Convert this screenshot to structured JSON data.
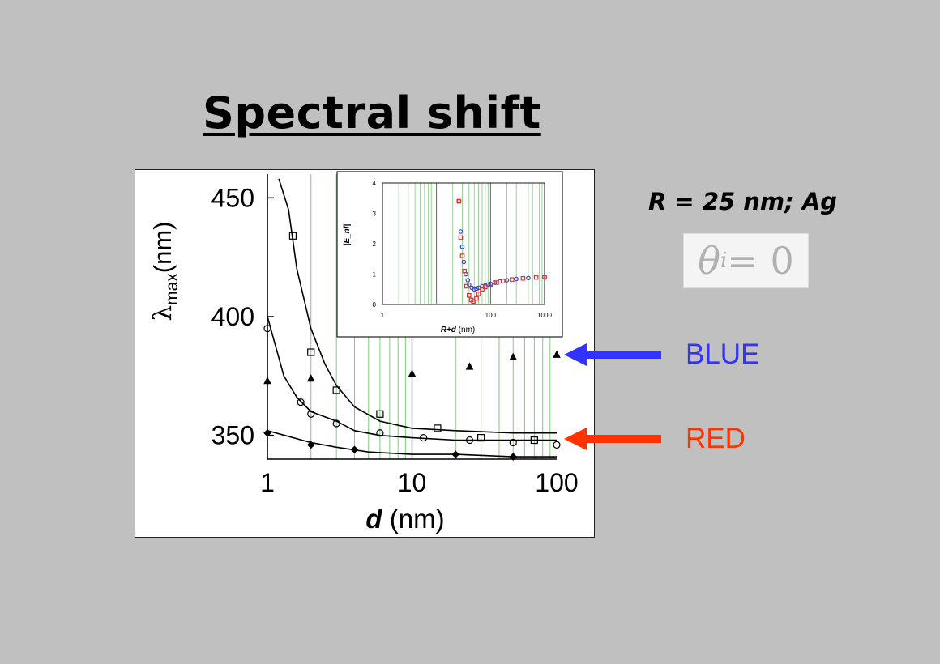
{
  "slide": {
    "title": "Spectral shift",
    "parameters": "R = 25 nm; Ag",
    "angle_symbol": "θ",
    "angle_subscript": "i",
    "angle_rest": " = 0",
    "blue_label": "BLUE",
    "red_label": "RED",
    "colors": {
      "background": "#c0c0c0",
      "blue": "#3333ff",
      "red": "#ff3300",
      "grid": "#7ccc7c"
    }
  },
  "chart_data": [
    {
      "type": "scatter",
      "title": "",
      "xlabel_italic": "d",
      "xlabel_rest": " (nm)",
      "ylabel_main": "λ",
      "ylabel_sub": "max",
      "ylabel_rest": "(nm)",
      "x_scale": "log",
      "xlim": [
        1,
        100
      ],
      "ylim": [
        340,
        460
      ],
      "xticks": [
        "1",
        "10",
        "100"
      ],
      "yticks": [
        "350",
        "400",
        "450"
      ],
      "grid": "vertical",
      "series": [
        {
          "marker": "square",
          "x": [
            1.5,
            2,
            3,
            6,
            15,
            30,
            70
          ],
          "y": [
            434,
            385,
            369,
            359,
            353,
            349,
            348
          ]
        },
        {
          "marker": "circle",
          "x": [
            1,
            1.7,
            2,
            3,
            6,
            12,
            25,
            50,
            100
          ],
          "y": [
            395,
            364,
            359,
            355,
            351,
            349,
            348,
            347,
            346
          ]
        },
        {
          "marker": "triangle",
          "x": [
            1,
            2,
            10,
            25,
            50,
            100
          ],
          "y": [
            373,
            374,
            376,
            379,
            383,
            384
          ]
        },
        {
          "marker": "diamond",
          "x": [
            1,
            2,
            4,
            20,
            50
          ],
          "y": [
            351,
            346,
            344,
            342,
            341
          ]
        }
      ],
      "fit_curves": [
        {
          "x": [
            1.2,
            1.4,
            1.6,
            2,
            2.5,
            3,
            4,
            6,
            10,
            20,
            50,
            100
          ],
          "y": [
            458,
            445,
            420,
            395,
            380,
            371,
            362,
            356,
            353,
            352,
            351,
            351
          ]
        },
        {
          "x": [
            1,
            1.3,
            1.6,
            2,
            3,
            4,
            6,
            10,
            20,
            50,
            100
          ],
          "y": [
            400,
            375,
            366,
            360,
            356,
            352,
            350,
            349,
            348,
            348,
            348
          ]
        },
        {
          "x": [
            1,
            2,
            3,
            5,
            10,
            20,
            50,
            100
          ],
          "y": [
            352,
            347,
            345,
            343,
            342,
            342,
            341,
            341
          ]
        }
      ]
    },
    {
      "type": "scatter",
      "title": "",
      "xlabel_italic": "R+d",
      "xlabel_rest": " (nm)",
      "ylabel": "|E_nl|",
      "x_scale": "log",
      "xlim": [
        1,
        1000
      ],
      "ylim": [
        0,
        4
      ],
      "xticks": [
        "1",
        "100",
        "1000"
      ],
      "yticks": [
        "0",
        "1",
        "2",
        "3",
        "4"
      ],
      "grid": "vertical",
      "series": [
        {
          "marker": "circle",
          "color": "#3344cc",
          "x": [
            26,
            28,
            30,
            32,
            35,
            38,
            40,
            45,
            50,
            55,
            60,
            70,
            80,
            90,
            100,
            120,
            150,
            200,
            300,
            500,
            1000
          ],
          "y": [
            3.4,
            2.4,
            1.9,
            1.4,
            1.0,
            0.8,
            0.65,
            0.55,
            0.5,
            0.52,
            0.55,
            0.6,
            0.63,
            0.66,
            0.68,
            0.72,
            0.76,
            0.8,
            0.84,
            0.87,
            0.9
          ]
        },
        {
          "marker": "square",
          "color": "#dd3333",
          "x": [
            26,
            28,
            30,
            33,
            36,
            40,
            44,
            48,
            55,
            60,
            70,
            80,
            100,
            130,
            170,
            250,
            400,
            700,
            1000
          ],
          "y": [
            3.4,
            2.2,
            1.6,
            1.1,
            0.6,
            0.3,
            0.15,
            0.1,
            0.2,
            0.35,
            0.5,
            0.58,
            0.65,
            0.72,
            0.77,
            0.82,
            0.86,
            0.89,
            0.9
          ]
        }
      ]
    }
  ]
}
